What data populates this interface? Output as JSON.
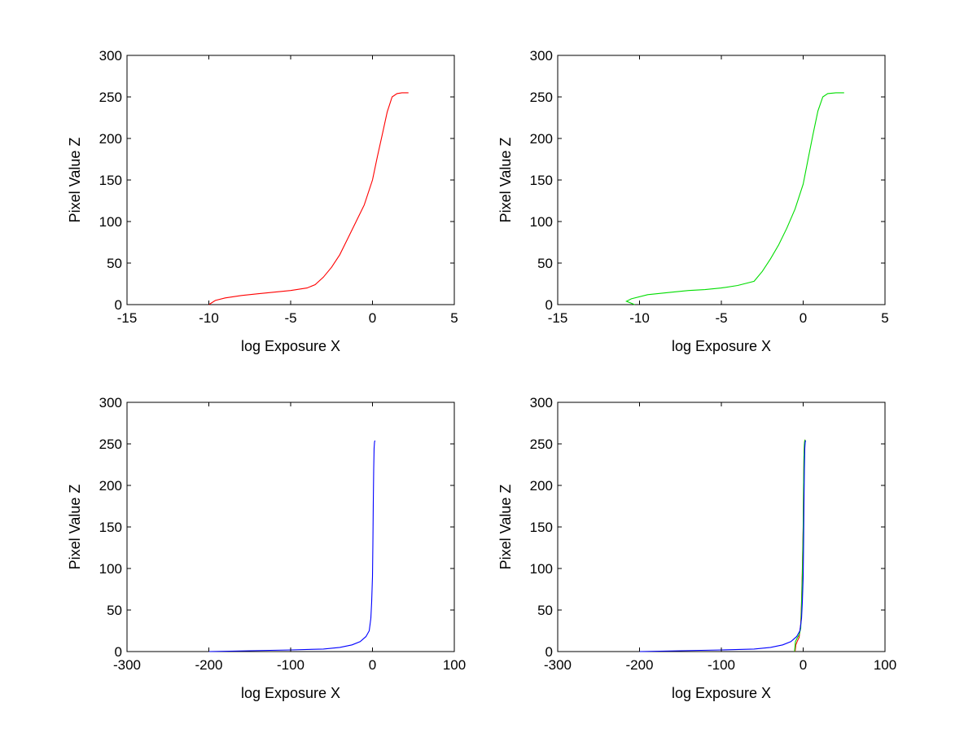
{
  "chart_data": [
    {
      "type": "line",
      "xlabel": "log Exposure X",
      "ylabel": "Pixel Value Z",
      "xlim": [
        -15,
        5
      ],
      "ylim": [
        0,
        300
      ],
      "xticks": [
        "-15",
        "-10",
        "-5",
        "0",
        "5"
      ],
      "yticks": [
        "0",
        "50",
        "100",
        "150",
        "200",
        "250",
        "300"
      ],
      "colors": [
        "#ff0000"
      ],
      "series": [
        {
          "x": [
            -10.0,
            -9.6,
            -9.0,
            -8.0,
            -7.0,
            -6.0,
            -5.0,
            -4.0,
            -3.5,
            -3.0,
            -2.5,
            -2.0,
            -1.5,
            -1.0,
            -0.5,
            0.0,
            0.3,
            0.6,
            0.9,
            1.2,
            1.5,
            1.8,
            2.2
          ],
          "y": [
            0,
            5,
            8,
            11,
            13,
            15,
            17,
            20,
            24,
            33,
            45,
            60,
            80,
            100,
            120,
            150,
            178,
            205,
            232,
            250,
            254,
            255,
            255
          ]
        }
      ]
    },
    {
      "type": "line",
      "xlabel": "log Exposure X",
      "ylabel": "Pixel Value Z",
      "xlim": [
        -15,
        5
      ],
      "ylim": [
        0,
        300
      ],
      "xticks": [
        "-15",
        "-10",
        "-5",
        "0",
        "5"
      ],
      "yticks": [
        "0",
        "50",
        "100",
        "150",
        "200",
        "250",
        "300"
      ],
      "colors": [
        "#00dd00"
      ],
      "series": [
        {
          "x": [
            -10.3,
            -10.8,
            -10.5,
            -9.5,
            -8.0,
            -7.0,
            -6.0,
            -5.0,
            -4.0,
            -3.0,
            -2.5,
            -2.0,
            -1.5,
            -1.0,
            -0.5,
            0.0,
            0.3,
            0.6,
            0.9,
            1.2,
            1.5,
            2.0,
            2.5
          ],
          "y": [
            0,
            4,
            7,
            12,
            15,
            17,
            18,
            20,
            23,
            28,
            40,
            55,
            72,
            92,
            115,
            145,
            175,
            205,
            233,
            250,
            254,
            255,
            255
          ]
        }
      ]
    },
    {
      "type": "line",
      "xlabel": "log Exposure X",
      "ylabel": "Pixel Value Z",
      "xlim": [
        -300,
        100
      ],
      "ylim": [
        0,
        300
      ],
      "xticks": [
        "-300",
        "-200",
        "-100",
        "0",
        "100"
      ],
      "yticks": [
        "0",
        "50",
        "100",
        "150",
        "200",
        "250",
        "300"
      ],
      "colors": [
        "#0000ff"
      ],
      "series": [
        {
          "x": [
            -200,
            -150,
            -100,
            -60,
            -40,
            -25,
            -15,
            -8,
            -4,
            -2,
            -1,
            0,
            0.5,
            1,
            1.5,
            2,
            2.5,
            3
          ],
          "y": [
            0,
            1,
            2,
            3,
            5,
            8,
            12,
            18,
            25,
            40,
            60,
            90,
            130,
            180,
            220,
            245,
            252,
            254
          ]
        }
      ]
    },
    {
      "type": "line",
      "xlabel": "log Exposure X",
      "ylabel": "Pixel Value Z",
      "xlim": [
        -300,
        100
      ],
      "ylim": [
        0,
        300
      ],
      "xticks": [
        "-300",
        "-200",
        "-100",
        "0",
        "100"
      ],
      "yticks": [
        "0",
        "50",
        "100",
        "150",
        "200",
        "250",
        "300"
      ],
      "colors": [
        "#ff0000",
        "#00dd00",
        "#0000ff"
      ],
      "series": [
        {
          "x": [
            -10,
            -9,
            -7,
            -5,
            -3,
            -2,
            -1,
            0,
            0.5,
            1,
            1.5,
            2,
            2.5
          ],
          "y": [
            0,
            8,
            13,
            17,
            33,
            60,
            100,
            150,
            200,
            235,
            250,
            254,
            255
          ]
        },
        {
          "x": [
            -10.5,
            -9.5,
            -7,
            -5,
            -3,
            -2,
            -1,
            0,
            0.5,
            1,
            1.5,
            2,
            2.5
          ],
          "y": [
            0,
            12,
            17,
            20,
            28,
            55,
            92,
            145,
            200,
            235,
            250,
            254,
            255
          ]
        },
        {
          "x": [
            -200,
            -150,
            -100,
            -60,
            -40,
            -25,
            -15,
            -8,
            -4,
            -2,
            -1,
            0,
            0.5,
            1,
            1.5,
            2,
            2.5,
            3
          ],
          "y": [
            0,
            1,
            2,
            3,
            5,
            8,
            12,
            18,
            25,
            40,
            60,
            90,
            130,
            180,
            220,
            245,
            252,
            254
          ]
        }
      ]
    }
  ]
}
